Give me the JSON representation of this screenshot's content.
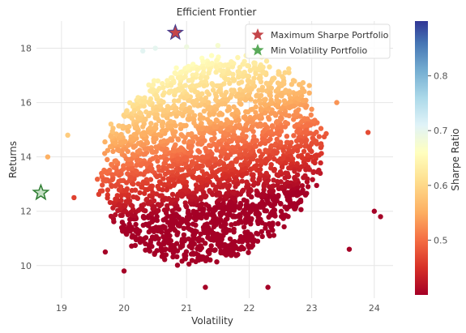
{
  "chart_data": {
    "type": "scatter",
    "title": "Efficient Frontier",
    "xlabel": "Volatility",
    "ylabel": "Returns",
    "xlim": [
      18.6,
      24.3
    ],
    "ylim": [
      8.8,
      19.0
    ],
    "x_ticks": [
      19,
      20,
      21,
      22,
      23,
      24
    ],
    "y_ticks": [
      10,
      12,
      14,
      16,
      18
    ],
    "grid": true,
    "colorbar": {
      "label": "Sharpe Ratio",
      "colormap": "RdYlBu",
      "range": [
        0.4,
        0.9
      ],
      "ticks": [
        0.5,
        0.6,
        0.7,
        0.8
      ]
    },
    "scatter_cloud": {
      "description_points": "random portfolios, colored by Sharpe ratio",
      "outliers": [
        {
          "x": 18.78,
          "y": 14.0
        },
        {
          "x": 19.1,
          "y": 14.8
        },
        {
          "x": 20.3,
          "y": 17.9
        },
        {
          "x": 20.5,
          "y": 18.0
        },
        {
          "x": 21.0,
          "y": 18.05
        },
        {
          "x": 21.5,
          "y": 18.1
        },
        {
          "x": 23.4,
          "y": 16.0
        },
        {
          "x": 23.9,
          "y": 14.9
        },
        {
          "x": 24.0,
          "y": 12.0
        },
        {
          "x": 24.1,
          "y": 11.8
        },
        {
          "x": 23.6,
          "y": 10.6
        },
        {
          "x": 22.3,
          "y": 9.2
        },
        {
          "x": 21.3,
          "y": 9.2
        },
        {
          "x": 20.0,
          "y": 9.8
        },
        {
          "x": 19.7,
          "y": 10.5
        },
        {
          "x": 19.2,
          "y": 12.5
        }
      ]
    },
    "markers": [
      {
        "name": "Maximum Sharpe Portfolio",
        "x": 20.82,
        "y": 18.57,
        "color": "#c4464a",
        "symbol": "star"
      },
      {
        "name": "Min Volatility Portfolio",
        "x": 18.67,
        "y": 12.68,
        "color": "#5aaa5a",
        "symbol": "star"
      }
    ],
    "legend": {
      "placement": "top-right",
      "entries": [
        "Maximum Sharpe Portfolio",
        "Min Volatility Portfolio"
      ]
    }
  }
}
